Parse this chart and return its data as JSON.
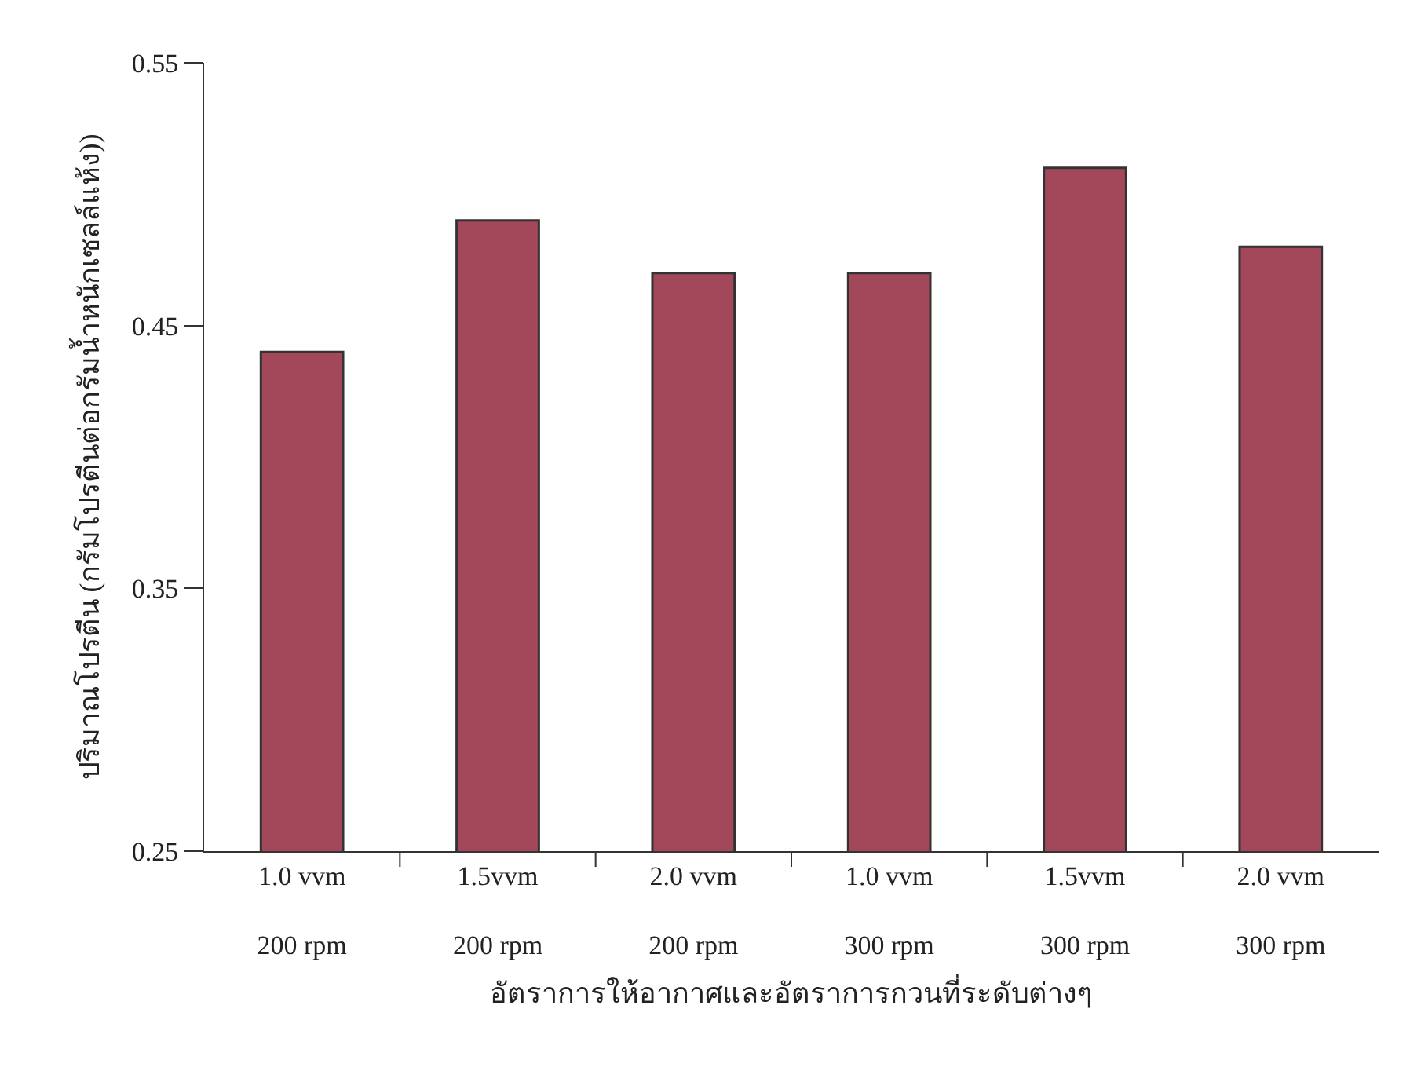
{
  "chart_data": {
    "type": "bar",
    "xlabel": "อัตราการให้อากาศและอัตราการกวนที่ระดับต่างๆ",
    "ylabel": "ปริมาณโปรตีน (กรัมโปรตีนต่อกรัมน้ำหนักเซลล์แห้ง))",
    "categories": [
      "1.0 vvm\n200 rpm",
      "1.5vvm\n200 rpm",
      "2.0 vvm\n200 rpm",
      "1.0 vvm\n300 rpm",
      "1.5vvm\n300 rpm",
      "2.0 vvm\n300 rpm"
    ],
    "values": [
      0.44,
      0.49,
      0.47,
      0.47,
      0.51,
      0.48
    ],
    "color": "#a3485a",
    "ylim": [
      0.25,
      0.55
    ],
    "yticks": [
      0.25,
      0.35,
      0.45,
      0.55
    ],
    "legend": false
  }
}
